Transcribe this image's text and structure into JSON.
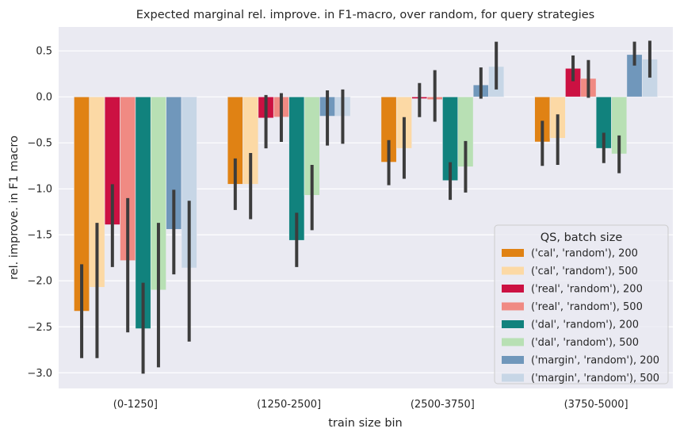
{
  "chart_data": {
    "type": "bar",
    "title": "Expected marginal rel. improve. in F1-macro, over random, for query strategies",
    "xlabel": "train size bin",
    "ylabel": "rel. improve. in F1 macro",
    "categories": [
      "(0-1250]",
      "(1250-2500]",
      "(2500-3750]",
      "(3750-5000]"
    ],
    "ylim": [
      -3.17,
      0.76
    ],
    "yticks": [
      0.5,
      0.0,
      -0.5,
      -1.0,
      -1.5,
      -2.0,
      -2.5,
      -3.0
    ],
    "ytick_labels": [
      "0.5",
      "0.0",
      "−0.5",
      "−1.0",
      "−1.5",
      "−2.0",
      "−2.5",
      "−3.0"
    ],
    "grid": true,
    "legend_title": "QS, batch size",
    "legend_position": "lower-right",
    "series": [
      {
        "name": "('cal', 'random'), 200",
        "color": "#e08214",
        "values": [
          -2.33,
          -0.95,
          -0.71,
          -0.49
        ],
        "err_low": [
          -2.84,
          -1.23,
          -0.96,
          -0.75
        ],
        "err_high": [
          -1.82,
          -0.67,
          -0.47,
          -0.26
        ]
      },
      {
        "name": "('cal', 'random'), 500",
        "color": "#fcd9a5",
        "values": [
          -2.07,
          -0.95,
          -0.56,
          -0.45
        ],
        "err_low": [
          -2.84,
          -1.33,
          -0.89,
          -0.74
        ],
        "err_high": [
          -1.37,
          -0.61,
          -0.22,
          -0.19
        ]
      },
      {
        "name": "('real', 'random'), 200",
        "color": "#cc1142",
        "values": [
          -1.39,
          -0.23,
          -0.02,
          0.31
        ],
        "err_low": [
          -1.85,
          -0.56,
          -0.22,
          0.17
        ],
        "err_high": [
          -0.95,
          0.02,
          0.15,
          0.45
        ]
      },
      {
        "name": "('real', 'random'), 500",
        "color": "#f08a83",
        "values": [
          -1.78,
          -0.22,
          -0.03,
          0.2
        ],
        "err_low": [
          -2.56,
          -0.49,
          -0.27,
          -0.01
        ],
        "err_high": [
          -1.1,
          0.04,
          0.29,
          0.4
        ]
      },
      {
        "name": "('dal', 'random'), 200",
        "color": "#11827d",
        "values": [
          -2.52,
          -1.56,
          -0.91,
          -0.56
        ],
        "err_low": [
          -3.01,
          -1.85,
          -1.12,
          -0.72
        ],
        "err_high": [
          -2.02,
          -1.26,
          -0.71,
          -0.39
        ]
      },
      {
        "name": "('dal', 'random'), 500",
        "color": "#b8e0b4",
        "values": [
          -2.1,
          -1.07,
          -0.76,
          -0.62
        ],
        "err_low": [
          -2.94,
          -1.45,
          -1.04,
          -0.83
        ],
        "err_high": [
          -1.37,
          -0.74,
          -0.48,
          -0.42
        ]
      },
      {
        "name": "('margin', 'random'), 200",
        "color": "#7097bb",
        "values": [
          -1.44,
          -0.21,
          0.13,
          0.46
        ],
        "err_low": [
          -1.93,
          -0.53,
          -0.02,
          0.34
        ],
        "err_high": [
          -1.01,
          0.07,
          0.32,
          0.6
        ]
      },
      {
        "name": "('margin', 'random'), 500",
        "color": "#c7d6e6",
        "values": [
          -1.86,
          -0.21,
          0.33,
          0.41
        ],
        "err_low": [
          -2.66,
          -0.51,
          0.08,
          0.21
        ],
        "err_high": [
          -1.13,
          0.08,
          0.6,
          0.61
        ]
      }
    ]
  }
}
